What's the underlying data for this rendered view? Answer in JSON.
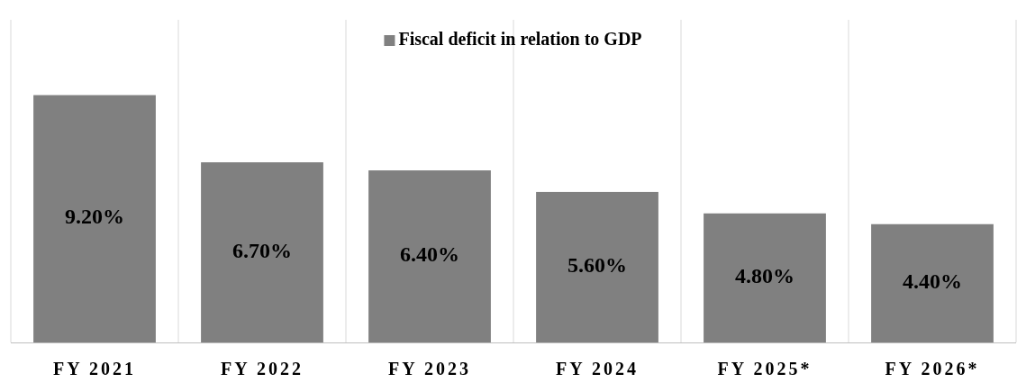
{
  "chart_data": {
    "type": "bar",
    "categories": [
      "FY 2021",
      "FY 2022",
      "FY 2023",
      "FY 2024",
      "FY 2025*",
      "FY 2026*"
    ],
    "series": [
      {
        "name": "Fiscal deficit in relation to GDP",
        "color": "#808080",
        "values": [
          9.2,
          6.7,
          6.4,
          5.6,
          4.8,
          4.4
        ],
        "value_labels": [
          "9.20%",
          "6.70%",
          "6.40%",
          "5.60%",
          "4.80%",
          "4.40%"
        ]
      }
    ],
    "ylim": [
      0,
      12
    ],
    "grid": "x",
    "legend": "top"
  }
}
